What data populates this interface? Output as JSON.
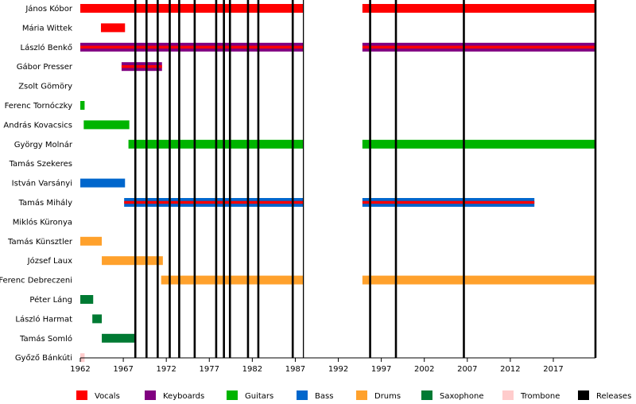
{
  "chart_data": {
    "type": "bar",
    "subtype": "timeline",
    "title": "",
    "xlabel": "",
    "ylabel": "",
    "xlim": [
      1962,
      2021.9
    ],
    "x_ticks": [
      1962,
      1967,
      1972,
      1977,
      1982,
      1987,
      1992,
      1997,
      2002,
      2007,
      2012,
      2017
    ],
    "gap": [
      1988,
      1994.8
    ],
    "members": [
      "János Kóbor",
      "Mária Wittek",
      "László Benkő",
      "Gábor Presser",
      "Zsolt Gömöry",
      "Ferenc Tornóczky",
      "András Kovacsics",
      "György Molnár",
      "Tamás Szekeres",
      "István Varsányi",
      "Tamás Mihály",
      "Miklós Küronya",
      "Tamás Künsztler",
      "József Laux",
      "Ferenc Debreczeni",
      "Péter Láng",
      "László Harmat",
      "Tamás Somló",
      "Győző Bánkúti"
    ],
    "roles": [
      {
        "key": "vocals",
        "name": "Vocals",
        "color": "#ff0000"
      },
      {
        "key": "keyboards",
        "name": "Keyboards",
        "color": "#800080"
      },
      {
        "key": "guitars",
        "name": "Guitars",
        "color": "#00b400"
      },
      {
        "key": "bass",
        "name": "Bass",
        "color": "#0066cc"
      },
      {
        "key": "drums",
        "name": "Drums",
        "color": "#ffa12c"
      },
      {
        "key": "saxophone",
        "name": "Saxophone",
        "color": "#007a33"
      },
      {
        "key": "trombone",
        "name": "Trombone",
        "color": "#ffcccc"
      },
      {
        "key": "releases",
        "name": "Releases",
        "color": "#000000"
      }
    ],
    "spans": [
      {
        "member": "János Kóbor",
        "role": "vocals",
        "start": 1962,
        "end": 2021.9
      },
      {
        "member": "Mária Wittek",
        "role": "vocals",
        "start": 1964.4,
        "end": 1967.2
      },
      {
        "member": "László Benkő",
        "role": "keyboards",
        "start": 1962,
        "end": 2021.9
      },
      {
        "member": "László Benkő",
        "role": "vocals",
        "start": 1962,
        "end": 2021.9,
        "accent": true
      },
      {
        "member": "Gábor Presser",
        "role": "keyboards",
        "start": 1966.8,
        "end": 1971.5
      },
      {
        "member": "Gábor Presser",
        "role": "vocals",
        "start": 1966.8,
        "end": 1971.5,
        "accent": true
      },
      {
        "member": "Ferenc Tornóczky",
        "role": "guitars",
        "start": 1962,
        "end": 1962.5
      },
      {
        "member": "András Kovacsics",
        "role": "guitars",
        "start": 1962.4,
        "end": 1967.7
      },
      {
        "member": "György Molnár",
        "role": "guitars",
        "start": 1967.6,
        "end": 2021.9
      },
      {
        "member": "István Varsányi",
        "role": "bass",
        "start": 1962,
        "end": 1967.2
      },
      {
        "member": "Tamás Mihály",
        "role": "bass",
        "start": 1967.1,
        "end": 2014.8
      },
      {
        "member": "Tamás Mihály",
        "role": "vocals",
        "start": 1967.1,
        "end": 2014.8,
        "accent": true
      },
      {
        "member": "Tamás Künsztler",
        "role": "drums",
        "start": 1962,
        "end": 1964.5
      },
      {
        "member": "József Laux",
        "role": "drums",
        "start": 1964.5,
        "end": 1971.6
      },
      {
        "member": "Ferenc Debreczeni",
        "role": "drums",
        "start": 1971.4,
        "end": 2021.9
      },
      {
        "member": "Péter Láng",
        "role": "saxophone",
        "start": 1962,
        "end": 1963.5
      },
      {
        "member": "László Harmat",
        "role": "saxophone",
        "start": 1963.4,
        "end": 1964.5
      },
      {
        "member": "Tamás Somló",
        "role": "saxophone",
        "start": 1964.5,
        "end": 1968.4
      },
      {
        "member": "Győző Bánkúti",
        "role": "trombone",
        "start": 1962,
        "end": 1962.5
      }
    ],
    "releases": [
      1968.4,
      1969.7,
      1971.0,
      1972.4,
      1973.5,
      1975.3,
      1977.8,
      1978.7,
      1979.4,
      1981.5,
      1982.7,
      1986.7,
      1988.0,
      1995.7,
      1998.7,
      2006.6,
      2021.9
    ],
    "grid": false,
    "legend_position": "bottom"
  }
}
